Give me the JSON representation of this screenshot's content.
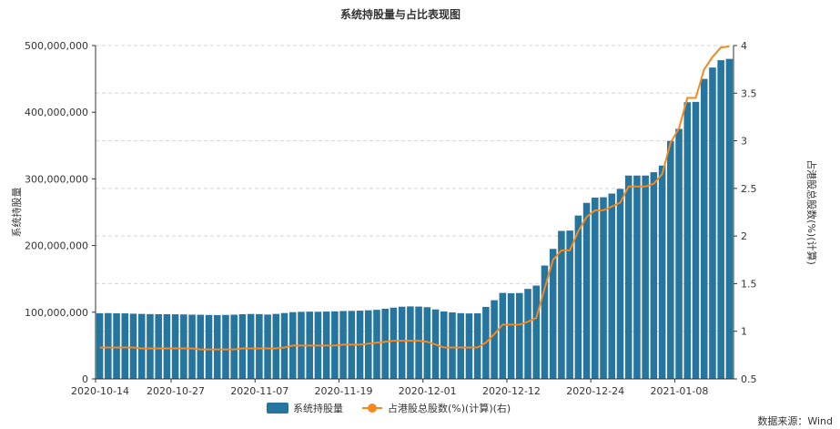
{
  "chart_data": {
    "type": "bar",
    "title": "系统持股量与占比表现图",
    "ylabel_left": "系统持股量",
    "ylabel_right": "占港股总股数(%)(计算)",
    "source_text": "数据来源：Wind",
    "y_left": {
      "min": 0,
      "max": 500000000,
      "ticks": [
        "0",
        "100,000,000",
        "200,000,000",
        "300,000,000",
        "400,000,000",
        "500,000,000"
      ]
    },
    "y_right": {
      "min": 0.5,
      "max": 4,
      "ticks": [
        "0.5",
        "1",
        "1.5",
        "2",
        "2.5",
        "3",
        "3.5",
        "4"
      ]
    },
    "x_tick_labels": [
      "2020-10-14",
      "2020-10-27",
      "2020-11-07",
      "2020-11-19",
      "2020-12-01",
      "2020-12-12",
      "2020-12-24",
      "2021-01-08"
    ],
    "x_tick_indices": [
      0,
      9,
      19,
      29,
      39,
      49,
      59,
      69
    ],
    "grid": true,
    "legend_position": "bottom",
    "colors": {
      "bar": "#25759f",
      "line": "#f5891f"
    },
    "series": [
      {
        "name": "系统持股量",
        "kind": "bar",
        "axis": "left",
        "values": [
          98500000,
          98700000,
          98400000,
          98300000,
          97800000,
          97500000,
          97200000,
          97000000,
          97100000,
          96900000,
          96700000,
          96400000,
          96200000,
          95900000,
          95700000,
          96000000,
          96300000,
          97000000,
          97400000,
          97200000,
          96500000,
          97500000,
          98800000,
          100100000,
          100600000,
          100900000,
          100700000,
          101000000,
          101300000,
          101800000,
          102000000,
          102400000,
          102900000,
          103600000,
          105300000,
          106900000,
          108300000,
          108700000,
          108500000,
          107600000,
          104200000,
          101200000,
          99700000,
          98600000,
          98200000,
          98400000,
          108000000,
          118000000,
          129000000,
          128500000,
          128800000,
          135000000,
          140000000,
          170000000,
          195000000,
          222000000,
          222500000,
          245000000,
          264000000,
          272000000,
          272500000,
          278000000,
          285000000,
          305000000,
          305000000,
          305000000,
          310000000,
          320000000,
          357000000,
          375000000,
          415000000,
          415500000,
          450000000,
          467000000,
          478000000,
          480000000
        ]
      },
      {
        "name": "占港股总股数(%)(计算)(右)",
        "kind": "line",
        "axis": "right",
        "values": [
          0.83,
          0.83,
          0.83,
          0.83,
          0.83,
          0.82,
          0.82,
          0.82,
          0.82,
          0.82,
          0.82,
          0.82,
          0.81,
          0.81,
          0.81,
          0.81,
          0.81,
          0.82,
          0.82,
          0.82,
          0.82,
          0.82,
          0.83,
          0.85,
          0.85,
          0.85,
          0.85,
          0.85,
          0.85,
          0.86,
          0.86,
          0.86,
          0.87,
          0.88,
          0.89,
          0.9,
          0.9,
          0.9,
          0.9,
          0.89,
          0.86,
          0.83,
          0.83,
          0.83,
          0.83,
          0.83,
          0.88,
          0.97,
          1.07,
          1.07,
          1.07,
          1.1,
          1.14,
          1.45,
          1.75,
          1.85,
          1.85,
          2.05,
          2.2,
          2.27,
          2.27,
          2.31,
          2.35,
          2.52,
          2.52,
          2.52,
          2.55,
          2.65,
          2.98,
          3.13,
          3.45,
          3.45,
          3.75,
          3.88,
          3.98,
          3.99
        ]
      }
    ]
  }
}
